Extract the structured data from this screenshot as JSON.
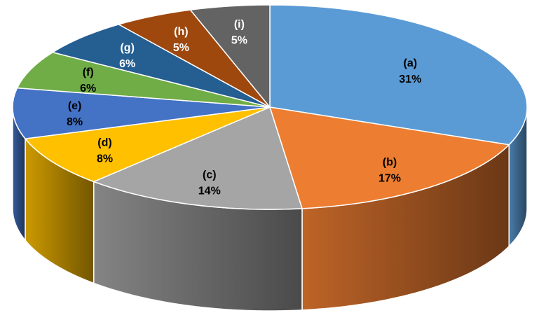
{
  "chart_data": {
    "type": "pie",
    "variant": "3d-pie",
    "title": "",
    "legend": "none",
    "show_percent_labels": true,
    "categories": [
      "(a)",
      "(b)",
      "(c)",
      "(d)",
      "(e)",
      "(f)",
      "(g)",
      "(h)",
      "(i)"
    ],
    "values": [
      31,
      17,
      14,
      8,
      8,
      6,
      6,
      5,
      5
    ],
    "percent_labels": [
      "31%",
      "17%",
      "14%",
      "8%",
      "8%",
      "6%",
      "6%",
      "5%",
      "5%"
    ],
    "colors": [
      "#5B9BD5",
      "#ED7D31",
      "#A5A5A5",
      "#FFC000",
      "#4472C4",
      "#70AD47",
      "#255E91",
      "#9E480E",
      "#636363"
    ],
    "label_colors": [
      "#000000",
      "#000000",
      "#000000",
      "#000000",
      "#000000",
      "#000000",
      "#ffffff",
      "#ffffff",
      "#ffffff"
    ]
  }
}
